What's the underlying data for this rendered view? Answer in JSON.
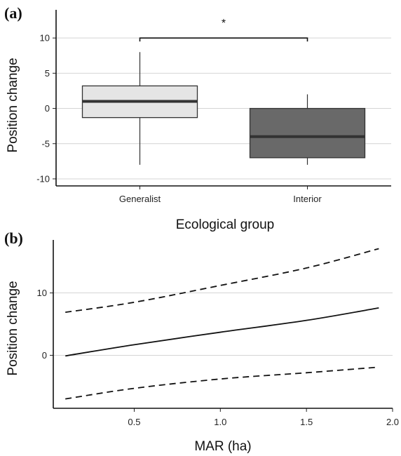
{
  "chart_data": [
    {
      "panel": "(a)",
      "type": "box",
      "title": "",
      "xlabel": "Ecological group",
      "ylabel": "Position change",
      "ylim": [
        -11,
        14
      ],
      "yticks": [
        -10,
        -5,
        0,
        5,
        10
      ],
      "grid": "horizontal",
      "categories": [
        "Generalist",
        "Interior"
      ],
      "boxes": [
        {
          "category": "Generalist",
          "min": -8,
          "q1": -1.3,
          "median": 1,
          "q3": 3.2,
          "max": 8,
          "fill": "#e5e5e5"
        },
        {
          "category": "Interior",
          "min": -8,
          "q1": -7,
          "median": -4,
          "q3": 0,
          "max": 2,
          "fill": "#696969"
        }
      ],
      "annotation": {
        "text": "*",
        "y": 10,
        "from": "Generalist",
        "to": "Interior"
      }
    },
    {
      "panel": "(b)",
      "type": "line",
      "title": "",
      "xlabel": "MAR (ha)",
      "ylabel": "Position change",
      "xlim": [
        0.03,
        2.0
      ],
      "ylim": [
        -8.5,
        18.5
      ],
      "xticks": [
        0.5,
        1.0,
        1.5,
        2.0
      ],
      "xtick_labels": [
        "0.5",
        "1.0",
        "1.5",
        "2.0"
      ],
      "yticks": [
        0,
        10
      ],
      "grid": "horizontal",
      "series": [
        {
          "style": "solid",
          "x": [
            0.1,
            0.5,
            1.0,
            1.5,
            1.92
          ],
          "y": [
            -0.1,
            1.7,
            3.7,
            5.6,
            7.6
          ]
        },
        {
          "style": "dashed",
          "x": [
            0.1,
            0.5,
            1.0,
            1.5,
            1.92
          ],
          "y": [
            6.9,
            8.5,
            11.2,
            14.0,
            17.1
          ]
        },
        {
          "style": "dashed",
          "x": [
            0.1,
            0.5,
            1.0,
            1.5,
            1.92
          ],
          "y": [
            -7.0,
            -5.3,
            -3.8,
            -2.8,
            -1.9
          ]
        }
      ]
    }
  ]
}
